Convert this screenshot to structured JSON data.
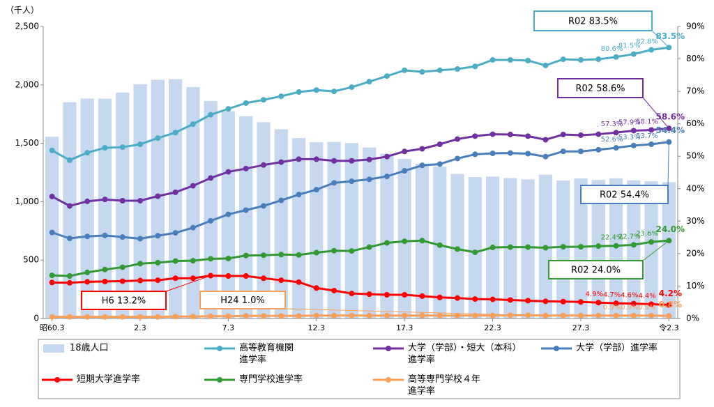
{
  "chart_data": {
    "type": "combo",
    "y_unit_label": "（千人）",
    "categories": [
      "昭60.3",
      null,
      null,
      null,
      null,
      "2.3",
      null,
      null,
      null,
      null,
      "7.3",
      null,
      null,
      null,
      null,
      "12.3",
      null,
      null,
      null,
      null,
      "17.3",
      null,
      null,
      null,
      null,
      "22.3",
      null,
      null,
      null,
      null,
      "27.3",
      null,
      null,
      null,
      null,
      "令2.3"
    ],
    "ylim": [
      0,
      2500
    ],
    "yticks": [
      0,
      500,
      {
        "value": 1000,
        "label": "1,000"
      },
      {
        "value": 1500,
        "label": "1,500"
      },
      {
        "value": 2000,
        "label": "2,000"
      },
      {
        "value": 2500,
        "label": "2,500"
      }
    ],
    "y2lim": [
      0,
      90
    ],
    "y2ticks": [
      {
        "value": 0,
        "label": "0%"
      },
      {
        "value": 10,
        "label": "10%"
      },
      {
        "value": 20,
        "label": "20%"
      },
      {
        "value": 30,
        "label": "30%"
      },
      {
        "value": 40,
        "label": "40%"
      },
      {
        "value": 50,
        "label": "50%"
      },
      {
        "value": 60,
        "label": "60%"
      },
      {
        "value": 70,
        "label": "70%"
      },
      {
        "value": 80,
        "label": "80%"
      },
      {
        "value": 90,
        "label": "90%"
      }
    ],
    "series": [
      {
        "name": "18歳人口",
        "type": "bar",
        "axis": "y",
        "color": "#c6d7f0",
        "values": [
          1556,
          1851,
          1883,
          1882,
          1934,
          2006,
          2044,
          2049,
          1981,
          1862,
          1773,
          1732,
          1681,
          1620,
          1545,
          1510,
          1512,
          1502,
          1464,
          1410,
          1366,
          1326,
          1300,
          1237,
          1211,
          1215,
          1202,
          1191,
          1231,
          1181,
          1199,
          1186,
          1200,
          1183,
          1175,
          1167
        ]
      },
      {
        "name": "高等教育機関\n進学率",
        "type": "line",
        "axis": "y2",
        "color": "#4bacc6",
        "values": [
          51.8,
          48.8,
          51.1,
          52.6,
          52.8,
          53.7,
          55.6,
          57.3,
          59.9,
          62.8,
          64.6,
          66.4,
          67.4,
          68.5,
          69.8,
          70.4,
          70.0,
          71.3,
          73.0,
          74.7,
          76.5,
          76.0,
          76.5,
          76.9,
          77.7,
          79.7,
          79.7,
          79.5,
          78.0,
          79.9,
          79.7,
          79.9,
          80.6,
          81.5,
          82.8,
          83.5
        ],
        "value_labels": [
          null,
          null,
          null,
          null,
          null,
          null,
          null,
          null,
          null,
          null,
          null,
          null,
          null,
          null,
          null,
          null,
          null,
          null,
          null,
          null,
          null,
          null,
          null,
          null,
          null,
          null,
          null,
          null,
          null,
          null,
          null,
          null,
          "80.6%",
          "81.5%",
          "82.8%",
          "83.5%"
        ]
      },
      {
        "name": "大学（学部）・短大（本科）\n進学率",
        "type": "line",
        "axis": "y2",
        "color": "#7030a0",
        "values": [
          37.6,
          34.7,
          36.1,
          36.7,
          36.3,
          36.3,
          37.7,
          38.9,
          40.9,
          43.3,
          45.2,
          46.2,
          47.3,
          48.2,
          49.1,
          49.1,
          48.6,
          48.6,
          49.0,
          49.9,
          51.5,
          52.3,
          53.7,
          55.3,
          56.2,
          56.8,
          56.7,
          56.2,
          55.1,
          56.7,
          56.5,
          56.8,
          57.3,
          57.9,
          58.1,
          58.6
        ],
        "value_labels": [
          null,
          null,
          null,
          null,
          null,
          null,
          null,
          null,
          null,
          null,
          null,
          null,
          null,
          null,
          null,
          null,
          null,
          null,
          null,
          null,
          null,
          null,
          null,
          null,
          null,
          null,
          null,
          null,
          null,
          null,
          null,
          null,
          "57.3%",
          "57.9%",
          "58.1%",
          "58.6%"
        ]
      },
      {
        "name": "大学（学部）進学率",
        "type": "line",
        "axis": "y2",
        "color": "#4a7ebb",
        "values": [
          26.5,
          24.7,
          25.3,
          25.6,
          25.1,
          24.6,
          25.5,
          26.4,
          28.0,
          30.1,
          32.1,
          33.4,
          34.7,
          36.4,
          38.2,
          39.7,
          41.8,
          42.3,
          42.9,
          43.8,
          45.5,
          47.2,
          47.6,
          49.3,
          50.6,
          50.9,
          51.0,
          50.8,
          49.9,
          51.5,
          51.5,
          52.0,
          52.6,
          53.3,
          53.7,
          54.4
        ],
        "value_labels": [
          null,
          null,
          null,
          null,
          null,
          null,
          null,
          null,
          null,
          null,
          null,
          null,
          null,
          null,
          null,
          null,
          null,
          null,
          null,
          null,
          null,
          null,
          null,
          null,
          null,
          null,
          null,
          null,
          null,
          null,
          null,
          null,
          "52.6%",
          "53.3%",
          "53.7%",
          "54.4%"
        ]
      },
      {
        "name": "短期大学進学率",
        "type": "line",
        "axis": "y2",
        "color": "#ff0000",
        "values": [
          11.1,
          11.0,
          11.3,
          11.4,
          11.5,
          11.7,
          11.8,
          12.4,
          12.4,
          13.2,
          13.1,
          13.1,
          12.4,
          11.8,
          11.2,
          9.4,
          8.6,
          7.7,
          7.5,
          7.3,
          7.3,
          6.9,
          6.5,
          6.3,
          6.0,
          5.9,
          5.7,
          5.5,
          5.3,
          5.2,
          5.1,
          4.9,
          4.7,
          4.6,
          4.4,
          4.2
        ],
        "value_labels": [
          null,
          null,
          null,
          null,
          null,
          null,
          null,
          null,
          null,
          null,
          null,
          null,
          null,
          null,
          null,
          null,
          null,
          null,
          null,
          null,
          null,
          null,
          null,
          null,
          null,
          null,
          null,
          null,
          null,
          null,
          null,
          "4.9%",
          "4.7%",
          "4.6%",
          "4.4%",
          "4.2%"
        ]
      },
      {
        "name": "専門学校進学率",
        "type": "line",
        "axis": "y2",
        "color": "#339933",
        "values": [
          13.3,
          13.1,
          14.2,
          15.1,
          15.8,
          16.9,
          17.2,
          17.7,
          17.8,
          18.4,
          18.5,
          19.4,
          19.5,
          19.7,
          19.6,
          20.3,
          20.9,
          20.8,
          22.0,
          23.3,
          23.8,
          24.0,
          22.6,
          21.4,
          20.4,
          21.9,
          22.0,
          22.0,
          21.8,
          22.1,
          22.1,
          22.3,
          22.4,
          22.7,
          23.6,
          24.0
        ],
        "value_labels": [
          null,
          null,
          null,
          null,
          null,
          null,
          null,
          null,
          null,
          null,
          null,
          null,
          null,
          null,
          null,
          null,
          null,
          null,
          null,
          null,
          null,
          null,
          null,
          null,
          null,
          null,
          null,
          null,
          null,
          null,
          null,
          null,
          "22.4%",
          "22.7%",
          "23.6%",
          "24.0%"
        ]
      },
      {
        "name": "高等専門学校４年\n進学率",
        "type": "line",
        "axis": "y2",
        "color": "#f8a05a",
        "values": [
          0.5,
          0.5,
          0.5,
          0.5,
          0.5,
          0.5,
          0.5,
          0.6,
          0.6,
          0.7,
          0.7,
          0.8,
          0.8,
          0.8,
          0.8,
          0.9,
          0.9,
          0.9,
          0.9,
          0.9,
          0.9,
          0.9,
          0.9,
          0.9,
          0.9,
          0.9,
          1.0,
          1.0,
          0.9,
          0.9,
          0.9,
          0.9,
          0.9,
          0.9,
          0.9,
          0.8
        ],
        "value_labels": [
          null,
          null,
          null,
          null,
          null,
          null,
          null,
          null,
          null,
          null,
          null,
          null,
          null,
          null,
          null,
          null,
          null,
          null,
          null,
          null,
          null,
          null,
          null,
          null,
          null,
          null,
          null,
          null,
          null,
          null,
          null,
          null,
          "0.9%",
          "0.9%",
          "0.9%",
          "0.8%"
        ]
      }
    ],
    "annotations": [
      {
        "text": "R02  83.5%",
        "color": "#4bacc6"
      },
      {
        "text": "R02  58.6%",
        "color": "#7030a0"
      },
      {
        "text": "R02  54.4%",
        "color": "#4a7ebb"
      },
      {
        "text": "R02  24.0%",
        "color": "#339933"
      },
      {
        "text": "H6  13.2%",
        "color": "#ff0000"
      },
      {
        "text": "H24  1.0%",
        "color": "#f8a05a"
      }
    ]
  }
}
